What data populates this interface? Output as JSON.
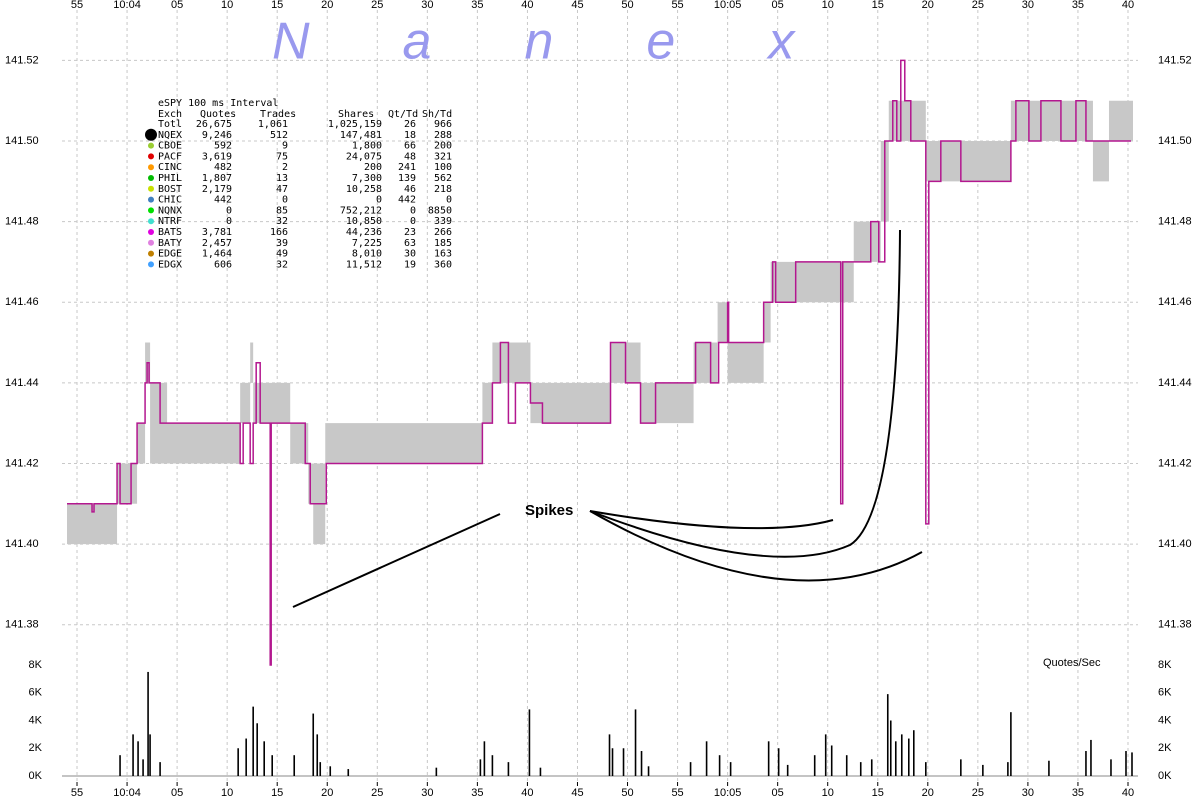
{
  "chart_data": [
    {
      "type": "line",
      "watermark": "Nanex",
      "annotation": "Spikes",
      "xlim": [
        233.5,
        341
      ],
      "ylim": [
        141.37,
        141.533
      ],
      "xticks": [
        {
          "value": 235,
          "label": "55"
        },
        {
          "value": 240,
          "label": "10:04"
        },
        {
          "value": 245,
          "label": "05"
        },
        {
          "value": 250,
          "label": "10"
        },
        {
          "value": 255,
          "label": "15"
        },
        {
          "value": 260,
          "label": "20"
        },
        {
          "value": 265,
          "label": "25"
        },
        {
          "value": 270,
          "label": "30"
        },
        {
          "value": 275,
          "label": "35"
        },
        {
          "value": 280,
          "label": "40"
        },
        {
          "value": 285,
          "label": "45"
        },
        {
          "value": 290,
          "label": "50"
        },
        {
          "value": 295,
          "label": "55"
        },
        {
          "value": 300,
          "label": "10:05"
        },
        {
          "value": 305,
          "label": "05"
        },
        {
          "value": 310,
          "label": "10"
        },
        {
          "value": 315,
          "label": "15"
        },
        {
          "value": 320,
          "label": "20"
        },
        {
          "value": 325,
          "label": "25"
        },
        {
          "value": 330,
          "label": "30"
        },
        {
          "value": 335,
          "label": "35"
        },
        {
          "value": 340,
          "label": "40"
        }
      ],
      "yticks": [
        141.38,
        {
          "value": 141.4,
          "label": "141.40"
        },
        141.42,
        141.44,
        141.46,
        141.48,
        {
          "value": 141.5,
          "label": "141.50"
        },
        141.52
      ],
      "grid": true,
      "band": {
        "color": "#c8c8c8",
        "x": [
          234.0,
          239.0,
          241.0,
          241.8,
          242.3,
          244.0,
          251.3,
          252.3,
          252.6,
          256.3,
          258.1,
          258.6,
          259.8,
          260.3,
          275.5,
          276.5,
          280.3,
          288.3,
          291.3,
          296.6,
          299.0,
          300.0,
          303.6,
          304.3,
          312.6,
          315.3,
          316.1,
          319.8,
          328.3,
          336.5,
          338.1,
          340.5
        ],
        "low": [
          141.4,
          141.41,
          141.42,
          141.44,
          141.42,
          141.42,
          141.43,
          141.44,
          141.43,
          141.42,
          141.41,
          141.4,
          141.42,
          141.42,
          141.43,
          141.44,
          141.43,
          141.44,
          141.43,
          141.44,
          141.45,
          141.44,
          141.45,
          141.46,
          141.47,
          141.48,
          141.5,
          141.49,
          141.5,
          141.49,
          141.5,
          141.5
        ],
        "high": [
          141.41,
          141.42,
          141.43,
          141.45,
          141.44,
          141.43,
          141.44,
          141.45,
          141.44,
          141.43,
          141.42,
          141.42,
          141.43,
          141.43,
          141.44,
          141.45,
          141.44,
          141.45,
          141.44,
          141.45,
          141.46,
          141.45,
          141.46,
          141.47,
          141.48,
          141.5,
          141.51,
          141.5,
          141.51,
          141.5,
          141.51,
          141.51
        ]
      },
      "series": [
        {
          "color": "#b3178f",
          "x": [
            234.0,
            236.5,
            236.7,
            239.0,
            239.3,
            240.4,
            241.0,
            241.8,
            242.0,
            242.2,
            243.3,
            251.3,
            251.6,
            252.3,
            252.6,
            252.9,
            253.3,
            254.3,
            254.4,
            257.8,
            258.3,
            259.9,
            275.5,
            276.5,
            277.3,
            278.1,
            278.8,
            280.3,
            281.5,
            288.3,
            289.8,
            291.3,
            292.8,
            296.8,
            298.3,
            299.1,
            300.0,
            300.1,
            303.6,
            304.5,
            304.8,
            306.8,
            311.3,
            311.5,
            314.3,
            315.1,
            315.7,
            316.5,
            316.9,
            317.3,
            317.7,
            318.3,
            319.8,
            320.1,
            321.3,
            323.3,
            328.3,
            328.8,
            330.1,
            331.3,
            333.3,
            334.8,
            335.8,
            340.3
          ],
          "values": [
            141.41,
            141.408,
            141.41,
            141.42,
            141.41,
            141.42,
            141.43,
            141.44,
            141.445,
            141.44,
            141.43,
            141.42,
            141.43,
            141.42,
            141.43,
            141.445,
            141.43,
            141.37,
            141.43,
            141.42,
            141.41,
            141.42,
            141.43,
            141.44,
            141.45,
            141.43,
            141.44,
            141.435,
            141.43,
            141.45,
            141.44,
            141.43,
            141.44,
            141.45,
            141.44,
            141.45,
            141.46,
            141.45,
            141.46,
            141.47,
            141.46,
            141.47,
            141.41,
            141.47,
            141.48,
            141.47,
            141.5,
            141.51,
            141.5,
            141.52,
            141.51,
            141.5,
            141.405,
            141.49,
            141.5,
            141.49,
            141.5,
            141.51,
            141.5,
            141.51,
            141.5,
            141.51,
            141.5,
            141.5
          ]
        }
      ]
    },
    {
      "type": "bar",
      "label": "Quotes/Sec",
      "color": "#000000",
      "xlim": [
        233.5,
        341
      ],
      "ylim": [
        0,
        8000
      ],
      "yticks": [
        {
          "value": 0,
          "label": "0K"
        },
        {
          "value": 2000,
          "label": "2K"
        },
        {
          "value": 4000,
          "label": "4K"
        },
        {
          "value": 6000,
          "label": "6K"
        },
        {
          "value": 8000,
          "label": "8K"
        }
      ],
      "x": [
        239.3,
        240.6,
        241.1,
        241.6,
        242.1,
        242.3,
        243.3,
        251.1,
        251.9,
        252.6,
        253.0,
        253.7,
        254.5,
        256.7,
        258.6,
        259.0,
        259.3,
        260.3,
        262.1,
        270.9,
        275.3,
        275.7,
        276.5,
        278.1,
        280.2,
        281.3,
        288.2,
        288.5,
        289.6,
        290.8,
        291.4,
        292.1,
        296.3,
        297.9,
        299.2,
        300.3,
        304.1,
        305.1,
        306.0,
        308.7,
        309.8,
        310.4,
        311.9,
        313.3,
        314.4,
        316.0,
        316.3,
        316.8,
        317.4,
        318.1,
        318.6,
        319.8,
        323.3,
        325.5,
        328.0,
        328.3,
        332.1,
        335.8,
        336.3,
        338.3,
        339.8,
        340.4
      ],
      "values": [
        1500,
        3000,
        2500,
        1200,
        7500,
        3000,
        1000,
        2000,
        2700,
        5000,
        3800,
        2500,
        1500,
        1500,
        4500,
        3000,
        1000,
        700,
        500,
        600,
        1200,
        2500,
        1500,
        1000,
        4800,
        600,
        3000,
        2000,
        2000,
        4800,
        1800,
        700,
        1000,
        2500,
        1500,
        1000,
        2500,
        2000,
        800,
        1500,
        3000,
        2200,
        1500,
        1000,
        1200,
        5900,
        4000,
        2500,
        3000,
        2700,
        3300,
        1000,
        1200,
        800,
        1000,
        4600,
        1100,
        1800,
        2600,
        1200,
        1800,
        1700
      ]
    }
  ],
  "table": {
    "title": "eSPY 100 ms Interval",
    "columns": [
      "Exch",
      "Quotes",
      "Trades",
      "Shares",
      "Qt/Td",
      "Sh/Td"
    ],
    "rows": [
      [
        "Totl",
        "26,675",
        "1,061",
        "1,025,159",
        "26",
        "966"
      ],
      [
        "NQEX",
        "9,246",
        "512",
        "147,481",
        "18",
        "288"
      ],
      [
        "CBOE",
        "592",
        "9",
        "1,800",
        "66",
        "200"
      ],
      [
        "PACF",
        "3,619",
        "75",
        "24,075",
        "48",
        "321"
      ],
      [
        "CINC",
        "482",
        "2",
        "200",
        "241",
        "100"
      ],
      [
        "PHIL",
        "1,807",
        "13",
        "7,300",
        "139",
        "562"
      ],
      [
        "BOST",
        "2,179",
        "47",
        "10,258",
        "46",
        "218"
      ],
      [
        "CHIC",
        "442",
        "0",
        "0",
        "442",
        "0"
      ],
      [
        "NQNX",
        "0",
        "85",
        "752,212",
        "0",
        "8850"
      ],
      [
        "NTRF",
        "0",
        "32",
        "10,850",
        "0",
        "339"
      ],
      [
        "BATS",
        "3,781",
        "166",
        "44,236",
        "23",
        "266"
      ],
      [
        "BATY",
        "2,457",
        "39",
        "7,225",
        "63",
        "185"
      ],
      [
        "EDGE",
        "1,464",
        "49",
        "8,010",
        "30",
        "163"
      ],
      [
        "EDGX",
        "606",
        "32",
        "11,512",
        "19",
        "360"
      ]
    ],
    "marker_colors": [
      null,
      "#000000",
      "#9acd32",
      "#e00000",
      "#ff9900",
      "#00bb00",
      "#c8e000",
      "#4080c0",
      "#00e000",
      "#40e0d0",
      "#e000e0",
      "#e080e0",
      "#c08000",
      "#40a0ff"
    ]
  }
}
